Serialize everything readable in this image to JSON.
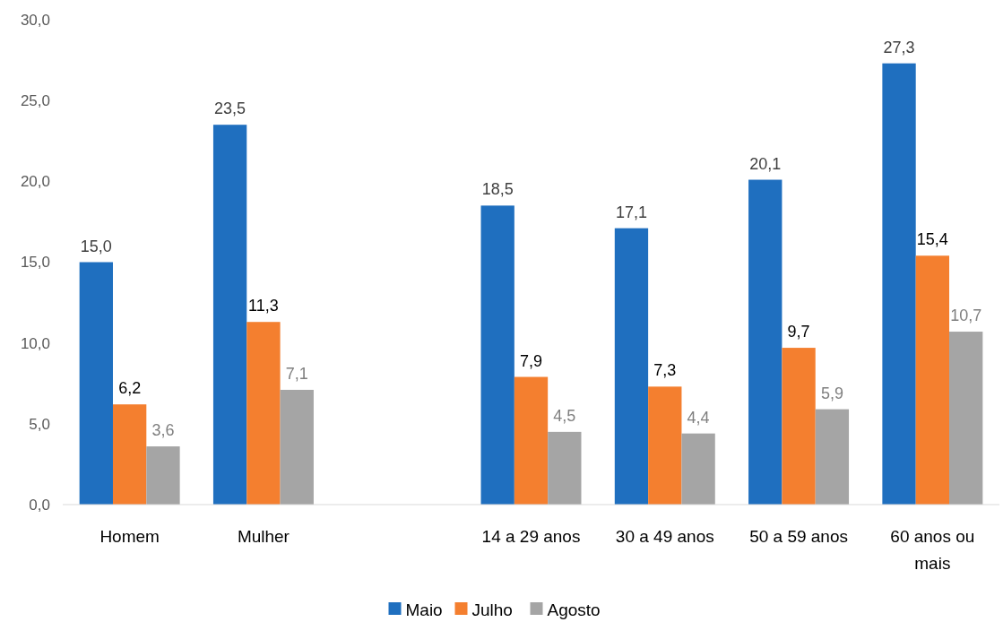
{
  "chart_data": {
    "type": "bar",
    "categories": [
      "Homem",
      "Mulher",
      null,
      "14 a 29 anos",
      "30 a 49 anos",
      "50 a 59 anos",
      "60 anos ou mais"
    ],
    "series": [
      {
        "name": "Maio",
        "color": "#1f6fbf",
        "values": [
          15.0,
          23.5,
          null,
          18.5,
          17.1,
          20.1,
          27.3
        ],
        "value_labels": [
          "15,0",
          "23,5",
          null,
          "18,5",
          "17,1",
          "20,1",
          "27,3"
        ]
      },
      {
        "name": "Julho",
        "color": "#f47f2f",
        "values": [
          6.2,
          11.3,
          null,
          7.9,
          7.3,
          9.7,
          15.4
        ],
        "value_labels": [
          "6,2",
          "11,3",
          null,
          "7,9",
          "7,3",
          "9,7",
          "15,4"
        ]
      },
      {
        "name": "Agosto",
        "color": "#a5a5a5",
        "values": [
          3.6,
          7.1,
          null,
          4.5,
          4.4,
          5.9,
          10.7
        ],
        "value_labels": [
          "3,6",
          "7,1",
          null,
          "4,5",
          "4,4",
          "5,9",
          "10,7"
        ]
      }
    ],
    "ylim": [
      0,
      30
    ],
    "yticks": [
      {
        "value": 0,
        "label": "0,0"
      },
      {
        "value": 5,
        "label": "5,0"
      },
      {
        "value": 10,
        "label": "10,0"
      },
      {
        "value": 15,
        "label": "15,0"
      },
      {
        "value": 20,
        "label": "20,0"
      },
      {
        "value": 25,
        "label": "25,0"
      },
      {
        "value": 30,
        "label": "30,0"
      }
    ],
    "grid": false,
    "legend": "bottom"
  }
}
